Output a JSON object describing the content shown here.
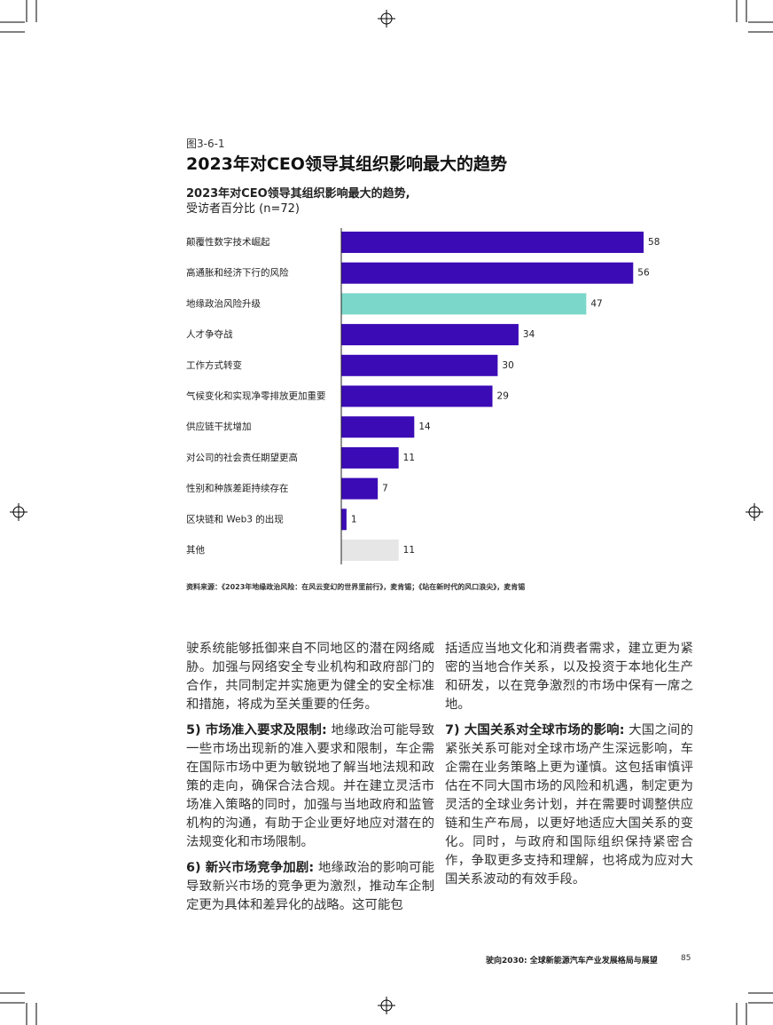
{
  "figure": {
    "label": "图3-6-1",
    "title": "2023年对CEO领导其组织影响最大的趋势"
  },
  "chart_data": {
    "type": "hbar",
    "subtitle_bold": "2023年对CEO领导其组织影响最大的趋势,",
    "subtitle": "受访者百分比 (n=72)",
    "categories": [
      "颠覆性数字技术崛起",
      "高通胀和经济下行的风险",
      "地缘政治风险升级",
      "人才争夺战",
      "工作方式转变",
      "气候变化和实现净零排放更加重要",
      "供应链干扰增加",
      "对公司的社会责任期望更高",
      "性别和种族差距持续存在",
      "区块链和 Web3 的出现",
      "其他"
    ],
    "values": [
      58,
      56,
      47,
      34,
      30,
      29,
      14,
      11,
      7,
      1,
      11
    ],
    "colors": [
      "#3b0bb5",
      "#3b0bb5",
      "#7bd7ca",
      "#3b0bb5",
      "#3b0bb5",
      "#3b0bb5",
      "#3b0bb5",
      "#3b0bb5",
      "#3b0bb5",
      "#3b0bb5",
      "#e6e6e6"
    ],
    "source": "资料来源：《2023年地缘政治风险：在风云变幻的世界里前行》，麦肯锡；《站在新时代的风口浪尖》，麦肯锡"
  },
  "body": {
    "left": [
      {
        "text": "驶系统能够抵御来自不同地区的潜在网络威胁。加强与网络安全专业机构和政府部门的合作，共同制定并实施更为健全的安全标准和措施，将成为至关重要的任务。"
      },
      {
        "lead": "5) 市场准入要求及限制:",
        "text": "地缘政治可能导致一些市场出现新的准入要求和限制，车企需在国际市场中更为敏锐地了解当地法规和政策的走向，确保合法合规。并在建立灵活市场准入策略的同时，加强与当地政府和监管机构的沟通，有助于企业更好地应对潜在的法规变化和市场限制。"
      },
      {
        "lead": "6) 新兴市场竞争加剧:",
        "text": "地缘政治的影响可能导致新兴市场的竞争更为激烈，推动车企制定更为具体和差异化的战略。这可能包"
      }
    ],
    "right": [
      {
        "text": "括适应当地文化和消费者需求，建立更为紧密的当地合作关系，以及投资于本地化生产和研发，以在竞争激烈的市场中保有一席之地。"
      },
      {
        "lead": "7) 大国关系对全球市场的影响:",
        "text": "大国之间的紧张关系可能对全球市场产生深远影响，车企需在业务策略上更为谨慎。这包括审慎评估在不同大国市场的风险和机遇，制定更为灵活的全球业务计划，并在需要时调整供应链和生产布局，以更好地适应大国关系的变化。同时，与政府和国际组织保持紧密合作，争取更多支持和理解，也将成为应对大国关系波动的有效手段。"
      }
    ]
  },
  "footer": {
    "title": "驶向2030: 全球新能源汽车产业发展格局与展望",
    "page": "85"
  }
}
